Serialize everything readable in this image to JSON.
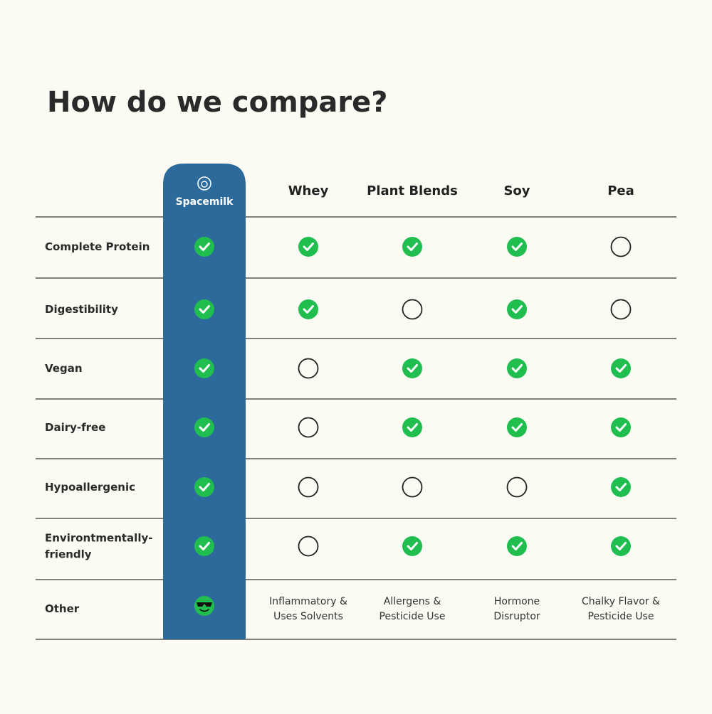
{
  "title": "How do we compare?",
  "columns": [
    "Spacemilk",
    "Whey",
    "Plant Blends",
    "Soy",
    "Pea"
  ],
  "rows": [
    {
      "label": [
        "Complete Protein"
      ],
      "cells": [
        true,
        true,
        true,
        true,
        false
      ]
    },
    {
      "label": [
        "Digestibility"
      ],
      "cells": [
        true,
        true,
        false,
        true,
        false
      ]
    },
    {
      "label": [
        "Vegan"
      ],
      "cells": [
        true,
        false,
        true,
        true,
        true
      ]
    },
    {
      "label": [
        "Dairy-free"
      ],
      "cells": [
        true,
        false,
        true,
        true,
        true
      ]
    },
    {
      "label": [
        "Hypoallergenic"
      ],
      "cells": [
        true,
        false,
        false,
        false,
        true
      ]
    },
    {
      "label": [
        "Environtmentally-",
        "friendly"
      ],
      "cells": [
        true,
        false,
        true,
        true,
        true
      ]
    }
  ],
  "other": {
    "label": "Other",
    "notes": [
      [
        "Inflammatory &",
        "Uses Solvents"
      ],
      [
        "Allergens &",
        "Pesticide Use"
      ],
      [
        "Hormone",
        "Disruptor"
      ],
      [
        "Chalky Flavor &",
        "Pesticide Use"
      ]
    ]
  }
}
